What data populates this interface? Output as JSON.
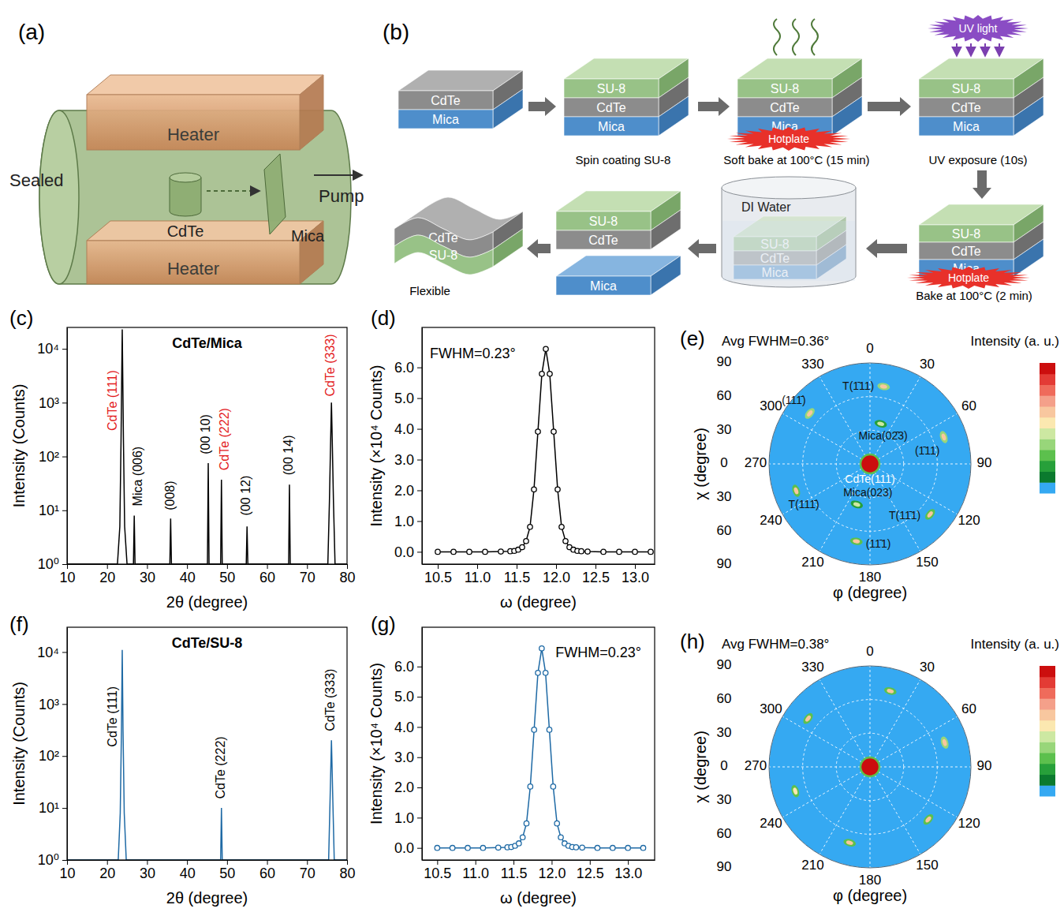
{
  "diagram_a": {
    "panel_label": "(a)",
    "sealed": "Sealed",
    "heater_top": "Heater",
    "heater_bottom": "Heater",
    "source": "CdTe",
    "substrate": "Mica",
    "pump": "Pump"
  },
  "diagram_b": {
    "panel_label": "(b)",
    "steps": [
      {
        "layers": [
          "CdTe",
          "Mica"
        ]
      },
      {
        "layers": [
          "SU-8",
          "CdTe",
          "Mica"
        ],
        "caption": "Spin coating SU-8"
      },
      {
        "layers": [
          "SU-8",
          "CdTe",
          "Mica"
        ],
        "caption": "Soft bake at 100°C (15 min)",
        "badge": "Hotplate"
      },
      {
        "layers": [
          "SU-8",
          "CdTe",
          "Mica"
        ],
        "caption": "UV exposure (10s)",
        "badge": "UV light"
      },
      {
        "layers": [
          "SU-8",
          "CdTe",
          "Mica"
        ],
        "caption": "Bake at 100°C (2 min)",
        "badge": "Hotplate"
      },
      {
        "layers": [
          "SU-8",
          "CdTe",
          "Mica"
        ],
        "container": "DI Water"
      },
      {
        "layers": [
          "SU-8",
          "CdTe"
        ],
        "detached": "Mica"
      },
      {
        "layers": [
          "CdTe",
          "SU-8"
        ],
        "caption": "Flexible"
      }
    ]
  },
  "chart_data": [
    {
      "panel_label": "(c)",
      "type": "line",
      "title": "CdTe/Mica",
      "xlabel": "2θ (degree)",
      "ylabel": "Intensity (Counts)",
      "log": "y",
      "color": "#000000",
      "xlim": [
        10,
        80
      ],
      "xticks": [
        10,
        20,
        30,
        40,
        50,
        60,
        70,
        80
      ],
      "ylim": [
        1,
        25000
      ],
      "yticks": [
        {
          "value": 1,
          "label": "10⁰"
        },
        {
          "value": 10,
          "label": "10¹"
        },
        {
          "value": 100,
          "label": "10²"
        },
        {
          "value": 1000,
          "label": "10³"
        },
        {
          "value": 10000,
          "label": "10⁴"
        }
      ],
      "x": [
        10,
        22.6,
        23.2,
        23.5,
        23.8,
        24.1,
        24.4,
        25.0,
        26.6,
        26.8,
        27.0,
        35.7,
        35.9,
        36.1,
        45.1,
        45.3,
        45.5,
        48.4,
        48.6,
        48.8,
        54.8,
        55.0,
        55.2,
        65.4,
        65.6,
        65.8,
        75.2,
        75.6,
        75.9,
        76.1,
        76.3,
        76.6,
        77.0,
        80
      ],
      "values": [
        1,
        1,
        5,
        200,
        23000,
        200,
        5,
        1,
        1,
        8,
        1,
        1,
        7,
        1,
        1,
        75,
        1,
        1,
        37,
        1,
        1,
        5,
        1,
        1,
        30,
        1,
        1,
        15,
        200,
        1000,
        200,
        15,
        1,
        1
      ],
      "annotations": [
        {
          "text": "CdTe (111)",
          "x": 21.5,
          "y": 300,
          "color": "#e31a1c"
        },
        {
          "text": "Mica (006)",
          "x": 28.0,
          "y": 12
        },
        {
          "text": "(008)",
          "x": 36.0,
          "y": 10
        },
        {
          "text": "(00 10)",
          "x": 44.8,
          "y": 110
        },
        {
          "text": "CdTe (222)",
          "x": 49.6,
          "y": 55,
          "color": "#e31a1c"
        },
        {
          "text": "(00 12)",
          "x": 55.0,
          "y": 8
        },
        {
          "text": "(00 14)",
          "x": 65.6,
          "y": 45
        },
        {
          "text": "CdTe (333)",
          "x": 76.1,
          "y": 1300,
          "color": "#e31a1c"
        }
      ]
    },
    {
      "panel_label": "(d)",
      "type": "line",
      "marker": "circle",
      "xlabel": "ω (degree)",
      "ylabel": "Intensity (×10⁴ Counts)",
      "color": "#000000",
      "xlim": [
        10.3,
        13.25
      ],
      "xticks": [
        10.5,
        {
          "value": 11,
          "label": "11.0"
        },
        11.5,
        {
          "value": 12,
          "label": "12.0"
        },
        12.5,
        {
          "value": 13,
          "label": "13.0"
        }
      ],
      "ylim": [
        -0.4,
        7.3
      ],
      "yticks": [
        {
          "value": 0,
          "label": "0.0"
        },
        {
          "value": 1,
          "label": "1.0"
        },
        {
          "value": 2,
          "label": "2.0"
        },
        {
          "value": 3,
          "label": "3.0"
        },
        {
          "value": 4,
          "label": "4.0"
        },
        {
          "value": 5,
          "label": "5.0"
        },
        {
          "value": 6,
          "label": "6.0"
        }
      ],
      "x": [
        10.5,
        10.7,
        10.9,
        11.1,
        11.3,
        11.42,
        11.47,
        11.52,
        11.57,
        11.62,
        11.67,
        11.72,
        11.77,
        11.82,
        11.87,
        11.92,
        11.97,
        12.02,
        12.07,
        12.12,
        12.17,
        12.22,
        12.27,
        12.32,
        12.4,
        12.6,
        12.8,
        13.0,
        13.2
      ],
      "values": [
        0,
        0,
        0,
        0,
        0.01,
        0.02,
        0.03,
        0.07,
        0.15,
        0.35,
        0.81,
        2.03,
        3.91,
        5.79,
        6.6,
        5.79,
        3.91,
        2.03,
        0.81,
        0.35,
        0.15,
        0.07,
        0.03,
        0.02,
        0.01,
        0,
        0,
        0,
        0
      ],
      "annotations": [
        {
          "text": "FWHM=0.23°",
          "x": 10.4,
          "y": 6.3
        }
      ]
    },
    {
      "panel_label": "(e)",
      "type": "polar",
      "title": "Avg FWHM=0.36°",
      "xlabel": "φ (degree)",
      "ylabel": "χ (degree)",
      "rlim": [
        0,
        90
      ],
      "rticks": [
        0,
        30,
        60,
        90
      ],
      "thetaticks": [
        0,
        30,
        60,
        90,
        120,
        150,
        180,
        210,
        240,
        270,
        300,
        330
      ],
      "colorbar": {
        "title": "Intensity (a. u.)",
        "zlim": [
          0,
          1
        ],
        "colors": [
          "#35a9f2",
          "#0b7a2e",
          "#27a03a",
          "#5cc04d",
          "#98d67a",
          "#cde8a2",
          "#fbe8b0",
          "#f8c79f",
          "#f4a08a",
          "#ef6b5b",
          "#e33b35",
          "#cc0e0e"
        ]
      },
      "points": {
        "phi": [
          0,
          10,
          70,
          130,
          190,
          250,
          310,
          15,
          198
        ],
        "chi": [
          0,
          70,
          70,
          70,
          70,
          70,
          70,
          37,
          38
        ],
        "intensity": [
          1,
          0.62,
          0.62,
          0.6,
          0.6,
          0.6,
          0.62,
          0.45,
          0.45
        ],
        "labels": [
          "CdTe(111)",
          "T(1̄11)",
          "(1̄11)",
          "T(11̄1)",
          "(11̄1)",
          "T(111̄)",
          "(111̄)",
          "Mica(02̄3)",
          "Mica(023)"
        ]
      }
    },
    {
      "panel_label": "(f)",
      "type": "line",
      "title": "CdTe/SU-8",
      "xlabel": "2θ (degree)",
      "ylabel": "Intensity (Counts)",
      "log": "y",
      "color": "#1f6aa5",
      "xlim": [
        10,
        80
      ],
      "xticks": [
        10,
        20,
        30,
        40,
        50,
        60,
        70,
        80
      ],
      "ylim": [
        1,
        30000
      ],
      "yticks": [
        {
          "value": 1,
          "label": "10⁰"
        },
        {
          "value": 10,
          "label": "10¹"
        },
        {
          "value": 100,
          "label": "10²"
        },
        {
          "value": 1000,
          "label": "10³"
        },
        {
          "value": 10000,
          "label": "10⁴"
        }
      ],
      "x": [
        10,
        22.8,
        23.3,
        23.6,
        23.8,
        24.0,
        24.3,
        24.8,
        48.4,
        48.6,
        48.8,
        75.4,
        75.8,
        76.1,
        76.4,
        76.8,
        80
      ],
      "values": [
        1,
        1,
        8,
        300,
        11000,
        300,
        8,
        1,
        1,
        10,
        1,
        1,
        20,
        200,
        20,
        1,
        1
      ],
      "annotations": [
        {
          "text": "CdTe (111)",
          "x": 21.5,
          "y": 150
        },
        {
          "text": "CdTe (222)",
          "x": 48.6,
          "y": 15
        },
        {
          "text": "CdTe (333)",
          "x": 76.1,
          "y": 300
        }
      ]
    },
    {
      "panel_label": "(g)",
      "type": "line",
      "marker": "circle",
      "xlabel": "ω (degree)",
      "ylabel": "Intensity (×10⁴ Counts)",
      "color": "#1f6aa5",
      "xlim": [
        10.3,
        13.35
      ],
      "xticks": [
        10.5,
        {
          "value": 11,
          "label": "11.0"
        },
        11.5,
        {
          "value": 12,
          "label": "12.0"
        },
        12.5,
        {
          "value": 13,
          "label": "13.0"
        }
      ],
      "ylim": [
        -0.4,
        7.3
      ],
      "yticks": [
        {
          "value": 0,
          "label": "0.0"
        },
        {
          "value": 1,
          "label": "1.0"
        },
        {
          "value": 2,
          "label": "2.0"
        },
        {
          "value": 3,
          "label": "3.0"
        },
        {
          "value": 4,
          "label": "4.0"
        },
        {
          "value": 5,
          "label": "5.0"
        },
        {
          "value": 6,
          "label": "6.0"
        }
      ],
      "x": [
        10.5,
        10.7,
        10.9,
        11.1,
        11.3,
        11.42,
        11.47,
        11.52,
        11.57,
        11.62,
        11.67,
        11.72,
        11.77,
        11.82,
        11.87,
        11.92,
        11.97,
        12.02,
        12.07,
        12.12,
        12.17,
        12.22,
        12.27,
        12.32,
        12.4,
        12.6,
        12.8,
        13.0,
        13.2
      ],
      "values": [
        0,
        0,
        0,
        0,
        0.01,
        0.02,
        0.03,
        0.07,
        0.15,
        0.35,
        0.81,
        2.03,
        3.91,
        5.79,
        6.6,
        5.79,
        3.91,
        2.03,
        0.81,
        0.35,
        0.15,
        0.07,
        0.03,
        0.02,
        0.01,
        0,
        0,
        0,
        0
      ],
      "annotations": [
        {
          "text": "FWHM=0.23°",
          "x": 12.05,
          "y": 6.3
        }
      ]
    },
    {
      "panel_label": "(h)",
      "type": "polar",
      "title": "Avg FWHM=0.38°",
      "xlabel": "φ (degree)",
      "ylabel": "χ (degree)",
      "rlim": [
        0,
        90
      ],
      "rticks": [
        0,
        30,
        60,
        90
      ],
      "thetaticks": [
        0,
        30,
        60,
        90,
        120,
        150,
        180,
        210,
        240,
        270,
        300,
        330
      ],
      "colorbar": {
        "title": "Intensity (a. u.)",
        "zlim": [
          0,
          1
        ],
        "colors": [
          "#35a9f2",
          "#0b7a2e",
          "#27a03a",
          "#5cc04d",
          "#98d67a",
          "#cde8a2",
          "#fbe8b0",
          "#f8c79f",
          "#f4a08a",
          "#ef6b5b",
          "#e33b35",
          "#cc0e0e"
        ]
      },
      "points": {
        "phi": [
          0,
          15,
          72,
          132,
          195,
          252,
          308
        ],
        "chi": [
          0,
          70,
          70,
          70,
          70,
          70,
          70
        ],
        "intensity": [
          1,
          0.6,
          0.62,
          0.6,
          0.6,
          0.58,
          0.6
        ]
      }
    }
  ]
}
